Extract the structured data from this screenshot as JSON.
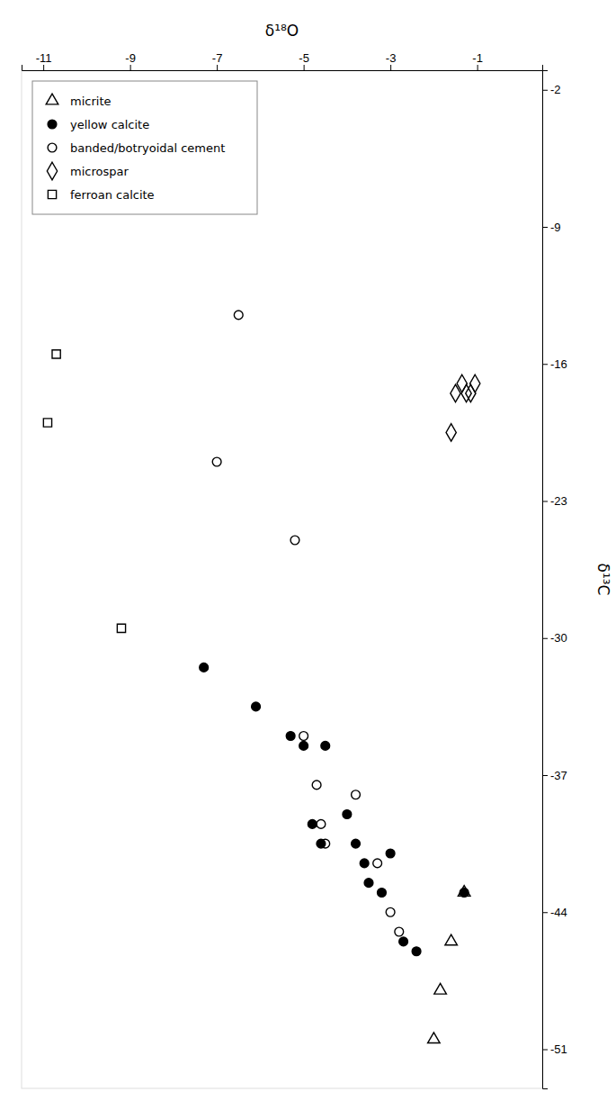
{
  "chart_data": {
    "type": "scatter",
    "x_label": "δ¹⁸O",
    "y_label": "δ¹³C",
    "xlim": [
      -11.5,
      0.5
    ],
    "ylim": [
      -53,
      -1
    ],
    "xticks": [
      -11,
      -9,
      -7,
      -5,
      -3,
      -1
    ],
    "yticks": [
      -2,
      -9,
      -16,
      -23,
      -30,
      -37,
      -44,
      -51
    ],
    "legend": "upper left",
    "series": [
      {
        "name": "micrite",
        "marker": "open-triangle",
        "color": "#000000",
        "x": [
          -1.3,
          -1.6,
          -1.85,
          -2.0
        ],
        "values": [
          -43.0,
          -45.5,
          -48.0,
          -50.5
        ]
      },
      {
        "name": "yellow calcite",
        "marker": "filled-circle",
        "color": "#000000",
        "x": [
          -7.3,
          -6.1,
          -5.3,
          -5.0,
          -4.8,
          -4.6,
          -4.5,
          -4.0,
          -3.8,
          -3.6,
          -3.5,
          -3.2,
          -3.0,
          -2.7,
          -2.4,
          -1.3
        ],
        "values": [
          -31.5,
          -33.5,
          -35.0,
          -35.5,
          -39.5,
          -40.5,
          -35.5,
          -39.0,
          -40.5,
          -41.5,
          -42.5,
          -43.0,
          -41.0,
          -45.5,
          -46.0,
          -43.0
        ]
      },
      {
        "name": "banded/botryoidal cement",
        "marker": "open-circle",
        "color": "#000000",
        "x": [
          -6.5,
          -7.0,
          -5.2,
          -5.0,
          -4.7,
          -4.6,
          -4.5,
          -3.8,
          -3.3,
          -3.0,
          -2.8
        ],
        "values": [
          -13.5,
          -21.0,
          -25.0,
          -35.0,
          -37.5,
          -39.5,
          -40.5,
          -38.0,
          -41.5,
          -44.0,
          -45.0
        ]
      },
      {
        "name": "microspar",
        "marker": "open-diamond",
        "color": "#000000",
        "x": [
          -1.5,
          -1.35,
          -1.25,
          -1.15,
          -1.6,
          -1.05
        ],
        "values": [
          -17.5,
          -17.0,
          -17.5,
          -17.5,
          -19.5,
          -17.0
        ]
      },
      {
        "name": "ferroan calcite",
        "marker": "open-square",
        "color": "#000000",
        "x": [
          -10.7,
          -10.9,
          -9.2
        ],
        "values": [
          -15.5,
          -19.0,
          -29.5
        ]
      }
    ]
  }
}
